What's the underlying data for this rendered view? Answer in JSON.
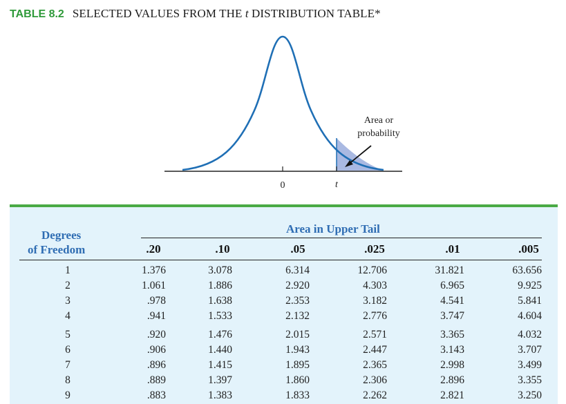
{
  "header": {
    "table_label": "TABLE 8.2",
    "title_prefix": "SELECTED VALUES FROM THE ",
    "title_italic": "t",
    "title_suffix": " DISTRIBUTION TABLE*"
  },
  "figure": {
    "zero_label": "0",
    "t_label": "t",
    "annotation_line1": "Area or",
    "annotation_line2": "probability",
    "colors": {
      "curve": "#1f6fb5",
      "shade": "#a9b9e2",
      "axis": "#222222"
    }
  },
  "table": {
    "row_header_line1": "Degrees",
    "row_header_line2": "of Freedom",
    "group_header": "Area in Upper Tail",
    "columns": [
      ".20",
      ".10",
      ".05",
      ".025",
      ".01",
      ".005"
    ],
    "rows": [
      {
        "df": "1",
        "values": [
          "1.376",
          "3.078",
          "6.314",
          "12.706",
          "31.821",
          "63.656"
        ]
      },
      {
        "df": "2",
        "values": [
          "1.061",
          "1.886",
          "2.920",
          "4.303",
          "6.965",
          "9.925"
        ]
      },
      {
        "df": "3",
        "values": [
          ".978",
          "1.638",
          "2.353",
          "3.182",
          "4.541",
          "5.841"
        ]
      },
      {
        "df": "4",
        "values": [
          ".941",
          "1.533",
          "2.132",
          "2.776",
          "3.747",
          "4.604"
        ]
      },
      {
        "df": "5",
        "values": [
          ".920",
          "1.476",
          "2.015",
          "2.571",
          "3.365",
          "4.032"
        ]
      },
      {
        "df": "6",
        "values": [
          ".906",
          "1.440",
          "1.943",
          "2.447",
          "3.143",
          "3.707"
        ]
      },
      {
        "df": "7",
        "values": [
          ".896",
          "1.415",
          "1.895",
          "2.365",
          "2.998",
          "3.499"
        ]
      },
      {
        "df": "8",
        "values": [
          ".889",
          "1.397",
          "1.860",
          "2.306",
          "2.896",
          "3.355"
        ]
      },
      {
        "df": "9",
        "values": [
          ".883",
          "1.383",
          "1.833",
          "2.262",
          "2.821",
          "3.250"
        ]
      }
    ],
    "colors": {
      "panel_bg": "#e3f3fb",
      "header_text": "#2f6db3",
      "rule": "#4aaa45"
    }
  }
}
